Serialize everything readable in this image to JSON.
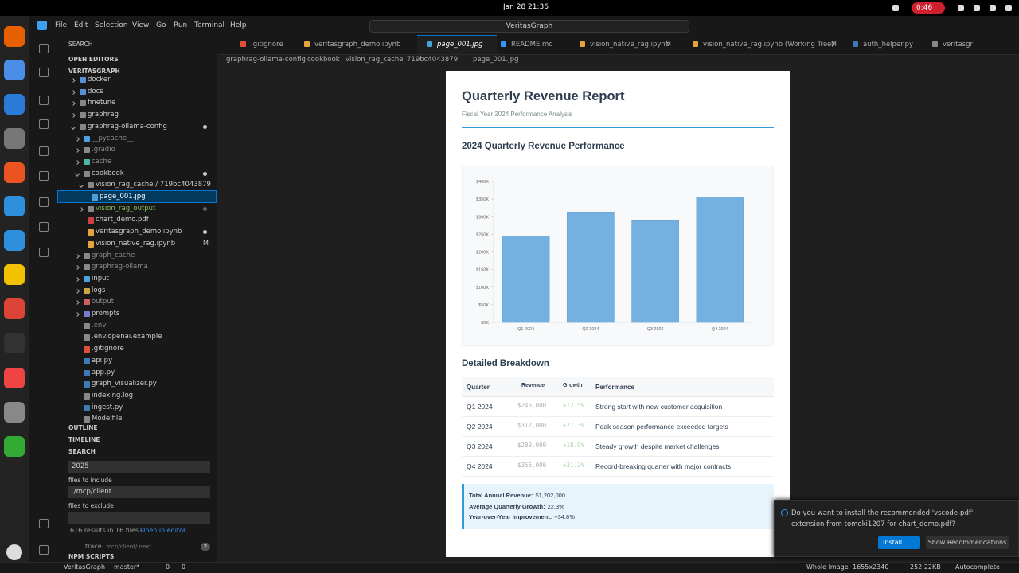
{
  "top_bar": {
    "clock": "Jan 28 21:36",
    "recording": "0:46"
  },
  "menu": [
    "File",
    "Edit",
    "Selection",
    "View",
    "Go",
    "Run",
    "Terminal",
    "Help"
  ],
  "command_center": "VeritasGraph",
  "sidebar": {
    "header": "SEARCH",
    "open_editors": "OPEN EDITORS",
    "workspace": "VERITASGRAPH",
    "tree": [
      {
        "label": "docker"
      },
      {
        "label": "docs"
      },
      {
        "label": "finetune"
      },
      {
        "label": "graphrag"
      },
      {
        "label": "graphrag-ollama-config"
      },
      {
        "label": "__pycache__"
      },
      {
        "label": ".gradio"
      },
      {
        "label": "cache"
      },
      {
        "label": "cookbook"
      },
      {
        "label": "vision_rag_cache / 719bc4043879"
      },
      {
        "label": "page_001.jpg"
      },
      {
        "label": "vision_rag_output"
      },
      {
        "label": "chart_demo.pdf"
      },
      {
        "label": "veritasgraph_demo.ipynb"
      },
      {
        "label": "vision_native_rag.ipynb",
        "badge": "M"
      },
      {
        "label": "graph_cache"
      },
      {
        "label": "graphrag-ollama"
      },
      {
        "label": "input"
      },
      {
        "label": "logs"
      },
      {
        "label": "output"
      },
      {
        "label": "prompts"
      },
      {
        "label": ".env"
      },
      {
        "label": ".env.openai.example"
      },
      {
        "label": ".gitignore"
      },
      {
        "label": "api.py"
      },
      {
        "label": "app.py"
      },
      {
        "label": "graph_visualizer.py"
      },
      {
        "label": "indexing.log"
      },
      {
        "label": "ingest.py"
      },
      {
        "label": "Modelfile"
      }
    ],
    "outline": "OUTLINE",
    "timeline": "TIMELINE",
    "search": {
      "title": "SEARCH",
      "query": "2025",
      "include_label": "files to include",
      "include": "./mcp/client",
      "exclude_label": "files to exclude",
      "summary": "616 results in 16 files -",
      "open_link": "Open in editor",
      "result": {
        "name": "trace",
        "path": ".mcp/client/.next",
        "count": "2"
      }
    },
    "npm": "NPM SCRIPTS"
  },
  "tabs": [
    {
      "label": ".gitignore"
    },
    {
      "label": "veritasgraph_demo.ipynb"
    },
    {
      "label": "page_001.jpg"
    },
    {
      "label": "README.md"
    },
    {
      "label": "vision_native_rag.ipynb",
      "badge": "M"
    },
    {
      "label": "vision_native_rag.ipynb (Working Tree)",
      "badge": "M"
    },
    {
      "label": "auth_helper.py"
    },
    {
      "label": "veritasgr"
    }
  ],
  "breadcrumb": [
    "graphrag-ollama-config",
    "cookbook",
    "vision_rag_cache",
    "719bc4043879",
    "page_001.jpg"
  ],
  "report": {
    "title": "Quarterly Revenue Report",
    "subtitle": "Fiscal Year 2024 Performance Analysis",
    "chart": {
      "type": "bar",
      "title": "2024 Quarterly Revenue Performance",
      "categories": [
        "Q1 2024",
        "Q2 2024",
        "Q3 2024",
        "Q4 2024"
      ],
      "values": [
        245000,
        312000,
        289000,
        356000
      ],
      "color": "#74b0e0",
      "ylim": [
        0,
        400000
      ],
      "yticks": [
        {
          "value": 0,
          "label": "$0K"
        },
        {
          "value": 50000,
          "label": "$50K"
        },
        {
          "value": 100000,
          "label": "$100K"
        },
        {
          "value": 150000,
          "label": "$150K"
        },
        {
          "value": 200000,
          "label": "$200K"
        },
        {
          "value": 250000,
          "label": "$250K"
        },
        {
          "value": 300000,
          "label": "$300K"
        },
        {
          "value": 350000,
          "label": "$350K"
        },
        {
          "value": 400000,
          "label": "$400K"
        }
      ]
    },
    "breakdown": {
      "title": "Detailed Breakdown",
      "columns": [
        "Quarter",
        "Revenue",
        "Growth",
        "Performance"
      ],
      "rows": [
        [
          "Q1 2024",
          "$245,000",
          "+12.5%",
          "Strong start with new customer acquisition"
        ],
        [
          "Q2 2024",
          "$312,000",
          "+27.3%",
          "Peak season performance exceeded targets"
        ],
        [
          "Q3 2024",
          "$289,000",
          "+18.0%",
          "Steady growth despite market challenges"
        ],
        [
          "Q4 2024",
          "$356,000",
          "+31.2%",
          "Record-breaking quarter with major contracts"
        ]
      ]
    },
    "summary": [
      {
        "label": "Total Annual Revenue:",
        "value": "$1,202,000"
      },
      {
        "label": "Average Quarterly Growth:",
        "value": "22.3%"
      },
      {
        "label": "Year-over-Year Improvement:",
        "value": "+34.8%"
      }
    ]
  },
  "notification": {
    "message": "Do you want to install the recommended 'vscode-pdf' extension from tomoki1207 for chart_demo.pdf?",
    "install": "Install",
    "recommendations": "Show Recommendations"
  },
  "status_bar": {
    "repo": "VeritasGraph",
    "branch": "master*",
    "errors": "0",
    "warnings": "0",
    "zoom": "Whole Image",
    "dimensions": "1655x2340",
    "size": "252.22KB",
    "autocomplete": "Autocomplete"
  }
}
